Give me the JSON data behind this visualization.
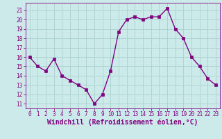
{
  "x": [
    0,
    1,
    2,
    3,
    4,
    5,
    6,
    7,
    8,
    9,
    10,
    11,
    12,
    13,
    14,
    15,
    16,
    17,
    18,
    19,
    20,
    21,
    22,
    23
  ],
  "y": [
    16,
    15,
    14.5,
    15.8,
    14,
    13.5,
    13,
    12.5,
    11,
    12,
    14.5,
    18.7,
    20,
    20.3,
    20,
    20.3,
    20.3,
    21.2,
    19,
    18,
    16,
    15,
    13.7,
    13
  ],
  "line_color": "#800080",
  "marker": "s",
  "marker_size": 2.2,
  "bg_color": "#cceaea",
  "grid_color": "#aad0d0",
  "xlabel": "Windchill (Refroidissement éolien,°C)",
  "xlabel_color": "#800080",
  "xlim": [
    -0.5,
    23.5
  ],
  "ylim": [
    10.5,
    21.8
  ],
  "yticks": [
    11,
    12,
    13,
    14,
    15,
    16,
    17,
    18,
    19,
    20,
    21
  ],
  "xticks": [
    0,
    1,
    2,
    3,
    4,
    5,
    6,
    7,
    8,
    9,
    10,
    11,
    12,
    13,
    14,
    15,
    16,
    17,
    18,
    19,
    20,
    21,
    22,
    23
  ],
  "tick_color": "#800080",
  "tick_fontsize": 5.5,
  "xlabel_fontsize": 7.0,
  "line_width": 1.0
}
